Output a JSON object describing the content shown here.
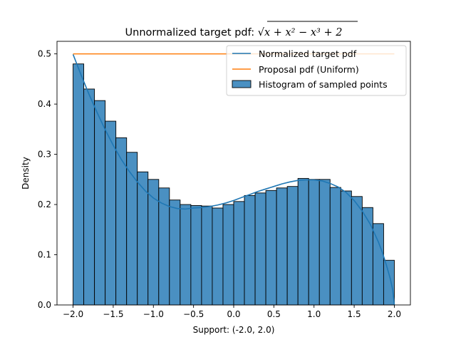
{
  "chart_data": {
    "type": "bar",
    "title_prefix": "Unnormalized target pdf: ",
    "title_math": {
      "radicand": "x + x² − x³ + 2"
    },
    "title": "Unnormalized target pdf: √(x + x² − x³ + 2)",
    "xlabel": "Support: (-2.0, 2.0)",
    "ylabel": "Density",
    "xlim": [
      -2.2,
      2.2
    ],
    "ylim": [
      0,
      0.525
    ],
    "xticks": [
      -2.0,
      -1.5,
      -1.0,
      -0.5,
      0.0,
      0.5,
      1.0,
      1.5,
      2.0
    ],
    "xtick_labels": [
      "−2.0",
      "−1.5",
      "−1.0",
      "−0.5",
      "0.0",
      "0.5",
      "1.0",
      "1.5",
      "2.0"
    ],
    "yticks": [
      0.0,
      0.1,
      0.2,
      0.3,
      0.4,
      0.5
    ],
    "ytick_labels": [
      "0.0",
      "0.1",
      "0.2",
      "0.3",
      "0.4",
      "0.5"
    ],
    "grid": false,
    "legend_position": "top-right",
    "histogram": {
      "name": "Histogram of sampled points",
      "color": "#4a90c2",
      "bin_edges": [
        -2.0,
        -1.8667,
        -1.7333,
        -1.6,
        -1.4667,
        -1.3333,
        -1.2,
        -1.0667,
        -0.9333,
        -0.8,
        -0.6667,
        -0.5333,
        -0.4,
        -0.2667,
        -0.1333,
        0.0,
        0.1333,
        0.2667,
        0.4,
        0.5333,
        0.6667,
        0.8,
        0.9333,
        1.0667,
        1.2,
        1.3333,
        1.4667,
        1.6,
        1.7333,
        1.8667,
        2.0
      ],
      "densities": [
        0.48,
        0.43,
        0.407,
        0.366,
        0.333,
        0.304,
        0.265,
        0.25,
        0.233,
        0.209,
        0.2,
        0.198,
        0.197,
        0.193,
        0.2,
        0.206,
        0.218,
        0.223,
        0.228,
        0.233,
        0.236,
        0.252,
        0.25,
        0.25,
        0.234,
        0.227,
        0.216,
        0.194,
        0.162,
        0.089
      ]
    },
    "series": [
      {
        "name": "Normalized target pdf",
        "color": "#1f77b4",
        "x": [
          -2.0,
          -1.9,
          -1.8,
          -1.7,
          -1.6,
          -1.5,
          -1.4,
          -1.3,
          -1.2,
          -1.1,
          -1.0,
          -0.9,
          -0.8,
          -0.7,
          -0.6,
          -0.5,
          -0.4,
          -0.3,
          -0.2,
          -0.1,
          0.0,
          0.1,
          0.2,
          0.3,
          0.4,
          0.5,
          0.6,
          0.7,
          0.8,
          0.9,
          1.0,
          1.1,
          1.2,
          1.3,
          1.4,
          1.5,
          1.6,
          1.7,
          1.8,
          1.85,
          1.9,
          1.95,
          1.98,
          2.0
        ],
        "y": [
          0.499,
          0.458,
          0.419,
          0.383,
          0.349,
          0.318,
          0.29,
          0.266,
          0.245,
          0.227,
          0.213,
          0.203,
          0.196,
          0.192,
          0.191,
          0.193,
          0.194,
          0.196,
          0.199,
          0.203,
          0.208,
          0.214,
          0.22,
          0.226,
          0.231,
          0.236,
          0.241,
          0.245,
          0.248,
          0.249,
          0.249,
          0.247,
          0.242,
          0.235,
          0.224,
          0.208,
          0.187,
          0.161,
          0.126,
          0.105,
          0.08,
          0.052,
          0.03,
          0.0
        ]
      },
      {
        "name": "Proposal pdf (Uniform)",
        "color": "#ff7f0e",
        "x": [
          -2.0,
          2.0
        ],
        "y": [
          0.5,
          0.5
        ]
      }
    ]
  }
}
